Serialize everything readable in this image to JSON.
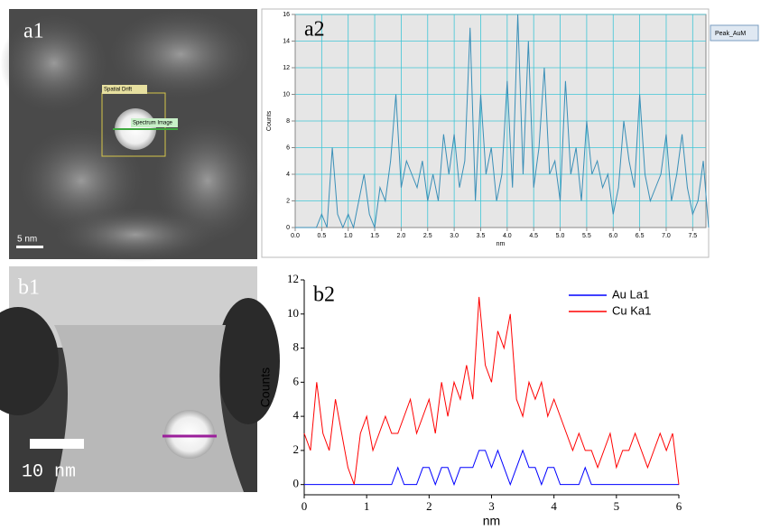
{
  "images": [
    {
      "label": "a1",
      "scale_bar": "5 nm",
      "annotations": [
        "Spatial Drift",
        "Spectrum Image"
      ]
    },
    {
      "label": "b1",
      "scale_bar": "10 nm"
    }
  ],
  "chart_data": [
    {
      "type": "line",
      "label": "a2",
      "x_label": "nm",
      "y_label": "Counts",
      "grid": true,
      "plot_background": "#e6e6e6",
      "legend": "outside-right",
      "x": [
        0,
        0.1,
        0.2,
        0.3,
        0.4,
        0.5,
        0.6,
        0.7,
        0.8,
        0.9,
        1,
        1.1,
        1.2,
        1.3,
        1.4,
        1.5,
        1.6,
        1.7,
        1.8,
        1.9,
        2,
        2.1,
        2.2,
        2.3,
        2.4,
        2.5,
        2.6,
        2.7,
        2.8,
        2.9,
        3,
        3.1,
        3.2,
        3.3,
        3.4,
        3.5,
        3.6,
        3.7,
        3.8,
        3.9,
        4,
        4.1,
        4.2,
        4.3,
        4.4,
        4.5,
        4.6,
        4.7,
        4.8,
        4.9,
        5,
        5.1,
        5.2,
        5.3,
        5.4,
        5.5,
        5.6,
        5.7,
        5.8,
        5.9,
        6,
        6.1,
        6.2,
        6.3,
        6.4,
        6.5,
        6.6,
        6.7,
        6.8,
        6.9,
        7,
        7.1,
        7.2,
        7.3,
        7.4,
        7.5,
        7.6,
        7.7,
        7.8
      ],
      "series": [
        {
          "name": "Peak_AuM",
          "color": "#3a8fb7",
          "values": [
            0,
            0,
            0,
            0,
            0,
            1,
            0,
            6,
            1,
            0,
            1,
            0,
            2,
            4,
            1,
            0,
            3,
            2,
            5,
            10,
            3,
            5,
            4,
            3,
            5,
            2,
            4,
            2,
            7,
            4,
            7,
            3,
            5,
            15,
            2,
            10,
            4,
            6,
            2,
            4,
            11,
            3,
            16,
            4,
            14,
            3,
            6,
            12,
            4,
            5,
            2,
            11,
            4,
            6,
            2,
            8,
            4,
            5,
            3,
            4,
            1,
            3,
            8,
            5,
            3,
            10,
            4,
            2,
            3,
            4,
            7,
            2,
            4,
            7,
            3,
            1,
            2,
            5,
            0
          ]
        }
      ],
      "xlim": [
        0,
        7.75
      ],
      "ylim": [
        0,
        16
      ],
      "xticks": [
        {
          "value": 0,
          "label": "0.0"
        },
        0.5,
        {
          "value": 1,
          "label": "1.0"
        },
        1.5,
        {
          "value": 2,
          "label": "2.0"
        },
        2.5,
        {
          "value": 3,
          "label": "3.0"
        },
        3.5,
        {
          "value": 4,
          "label": "4.0"
        },
        4.5,
        {
          "value": 5,
          "label": "5.0"
        },
        5.5,
        {
          "value": 6,
          "label": "6.0"
        },
        6.5,
        {
          "value": 7,
          "label": "7.0"
        },
        7.5
      ],
      "yticks": [
        0,
        2,
        4,
        6,
        8,
        10,
        12,
        14,
        16
      ]
    },
    {
      "type": "line",
      "label": "b2",
      "x_label": "nm",
      "y_label": "Counts",
      "grid": false,
      "plot_background": "#ffffff",
      "legend": "upper-right",
      "x": [
        0,
        0.1,
        0.2,
        0.3,
        0.4,
        0.5,
        0.6,
        0.7,
        0.8,
        0.9,
        1,
        1.1,
        1.2,
        1.3,
        1.4,
        1.5,
        1.6,
        1.7,
        1.8,
        1.9,
        2,
        2.1,
        2.2,
        2.3,
        2.4,
        2.5,
        2.6,
        2.7,
        2.8,
        2.9,
        3,
        3.1,
        3.2,
        3.3,
        3.4,
        3.5,
        3.6,
        3.7,
        3.8,
        3.9,
        4,
        4.1,
        4.2,
        4.3,
        4.4,
        4.5,
        4.6,
        4.7,
        4.8,
        4.9,
        5,
        5.1,
        5.2,
        5.3,
        5.4,
        5.5,
        5.6,
        5.7,
        5.8,
        5.9,
        6
      ],
      "series": [
        {
          "name": "Au La1",
          "color": "#0000ff",
          "values": [
            0,
            0,
            0,
            0,
            0,
            0,
            0,
            0,
            0,
            0,
            0,
            0,
            0,
            0,
            0,
            1,
            0,
            0,
            0,
            1,
            1,
            0,
            1,
            1,
            0,
            1,
            1,
            1,
            2,
            2,
            1,
            2,
            1,
            0,
            1,
            2,
            1,
            1,
            0,
            1,
            1,
            0,
            0,
            0,
            0,
            1,
            0,
            0,
            0,
            0,
            0,
            0,
            0,
            0,
            0,
            0,
            0,
            0,
            0,
            0,
            0
          ]
        },
        {
          "name": "Cu Ka1",
          "color": "#ff0000",
          "values": [
            3,
            2,
            6,
            3,
            2,
            5,
            3,
            1,
            0,
            3,
            4,
            2,
            3,
            4,
            3,
            3,
            4,
            5,
            3,
            4,
            5,
            3,
            6,
            4,
            6,
            5,
            7,
            5,
            11,
            7,
            6,
            9,
            8,
            10,
            5,
            4,
            6,
            5,
            6,
            4,
            5,
            4,
            3,
            2,
            3,
            2,
            2,
            1,
            2,
            3,
            1,
            2,
            2,
            3,
            2,
            1,
            2,
            3,
            2,
            3,
            0
          ]
        }
      ],
      "xlim": [
        0,
        6
      ],
      "ylim": [
        -0.6,
        12
      ],
      "xticks": [
        0,
        1,
        2,
        3,
        4,
        5,
        6
      ],
      "yticks": [
        0,
        2,
        4,
        6,
        8,
        10,
        12
      ]
    }
  ]
}
